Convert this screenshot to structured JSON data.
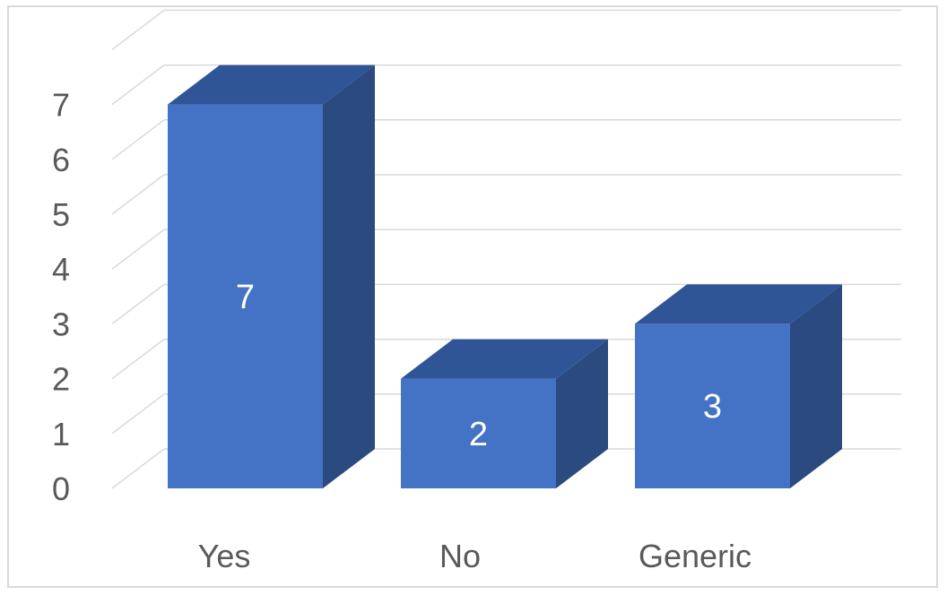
{
  "chart_data": {
    "type": "bar",
    "style": "3d-column",
    "categories": [
      "Yes",
      "No",
      "Generic"
    ],
    "values": [
      7,
      2,
      3
    ],
    "data_labels": [
      "7",
      "2",
      "3"
    ],
    "ylim": [
      0,
      7
    ],
    "yticks": [
      "0",
      "1",
      "2",
      "3",
      "4",
      "5",
      "6",
      "7"
    ],
    "grid": true,
    "legend": "none",
    "colors": {
      "front": "#4472c4",
      "top": "#2f5597",
      "side": "#2a4a80",
      "grid": "#d9d9d9",
      "text": "#595959",
      "label": "#ffffff"
    }
  }
}
